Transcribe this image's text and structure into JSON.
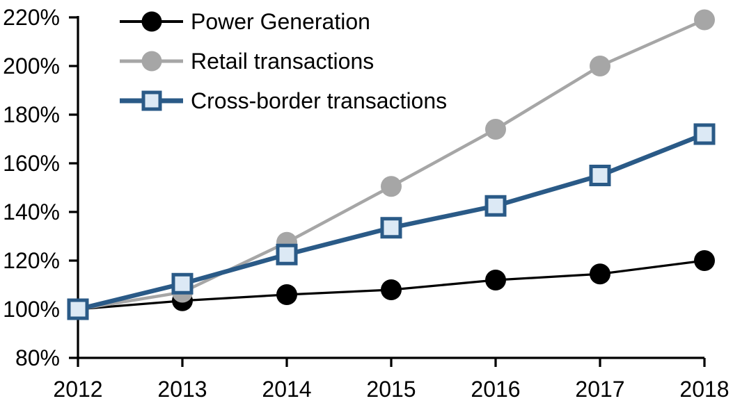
{
  "chart_data": {
    "type": "line",
    "title": "",
    "xlabel": "",
    "ylabel": "",
    "grid": false,
    "legend_position": "top-left",
    "background_color": "#ffffff",
    "axis_color": "#000000",
    "x": [
      2012,
      2013,
      2014,
      2015,
      2016,
      2017,
      2018
    ],
    "x_axis": {
      "tick_labels": [
        "2012",
        "2013",
        "2014",
        "2015",
        "2016",
        "2017",
        "2018"
      ]
    },
    "y_axis": {
      "min": 80,
      "max": 220,
      "step": 20,
      "unit": "%",
      "tick_labels": [
        "80%",
        "100%",
        "120%",
        "140%",
        "160%",
        "180%",
        "200%",
        "220%"
      ]
    },
    "series": [
      {
        "name": "Power Generation",
        "color": "#000000",
        "marker": "circle",
        "marker_fill": "#000000",
        "line_width": 3.25,
        "values": [
          100,
          103.5,
          106,
          108,
          112,
          114.5,
          120
        ]
      },
      {
        "name": "Retail transactions",
        "color": "#a6a6a6",
        "marker": "circle",
        "marker_fill": "#a6a6a6",
        "line_width": 4.5,
        "values": [
          100,
          107,
          127.5,
          150.5,
          174,
          200,
          219
        ]
      },
      {
        "name": "Cross-border transactions",
        "color": "#2a5a87",
        "marker": "square",
        "marker_fill": "#dce9f5",
        "line_width": 6.5,
        "values": [
          100,
          110.5,
          122.5,
          133.5,
          142.5,
          155,
          172
        ]
      }
    ]
  }
}
